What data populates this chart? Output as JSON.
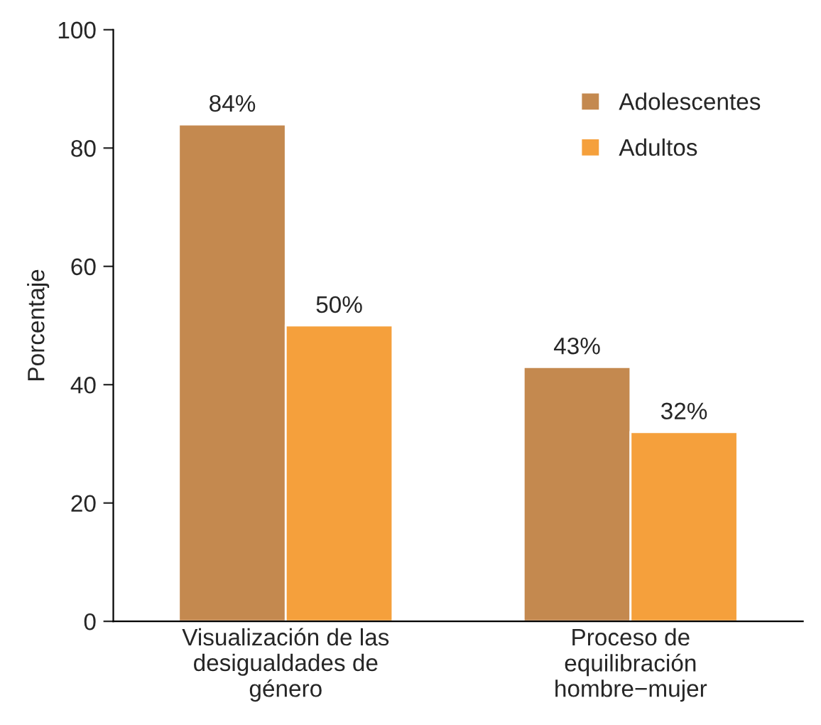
{
  "chart_data": {
    "type": "bar",
    "ylabel": "Porcentaje",
    "categories": [
      "Visualización de las\ndesigualdades de\ngénero",
      "Proceso de\nequilibración\nhombre−mujer"
    ],
    "series": [
      {
        "name": "Adolescentes",
        "color": "#c4894f",
        "values": [
          84,
          43
        ],
        "value_labels": [
          "84%",
          "43%"
        ]
      },
      {
        "name": "Adultos",
        "color": "#f5a03c",
        "values": [
          50,
          32
        ],
        "value_labels": [
          "50%",
          "32%"
        ]
      }
    ],
    "ylim": [
      0,
      100
    ],
    "yticks": [
      0,
      20,
      40,
      60,
      80,
      100
    ],
    "grid": false,
    "legend": "top right"
  }
}
